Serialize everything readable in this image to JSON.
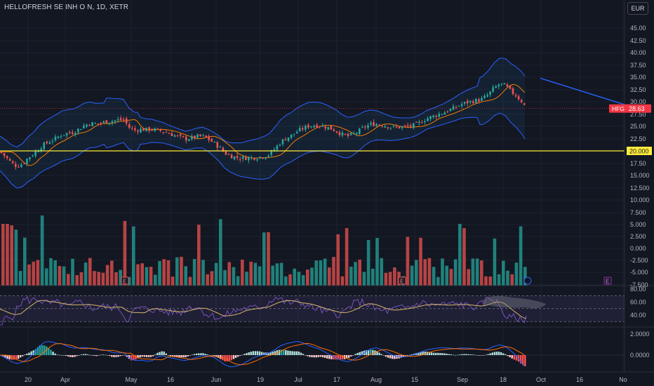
{
  "header": {
    "symbol_title": "HELLOFRESH SE INH O N, 1D, XETR",
    "currency": "EUR"
  },
  "price_axis": {
    "ticks": [
      "45.00",
      "42.50",
      "40.00",
      "37.50",
      "35.00",
      "32.50",
      "30.00",
      "27.50",
      "25.00",
      "22.50",
      "20.00",
      "17.50",
      "15.000",
      "12.500",
      "10.000",
      "7.500",
      "5.000",
      "2.500",
      "0.000",
      "-2.500",
      "-5.000",
      "-7.500"
    ]
  },
  "rsi_axis": {
    "ticks": [
      "80.00",
      "60.00",
      "40.00"
    ]
  },
  "macd_axis": {
    "ticks": [
      "2.0000",
      "0.0000"
    ]
  },
  "time_axis": {
    "ticks": [
      "20",
      "Apr",
      "May",
      "16",
      "Jun",
      "19",
      "Jul",
      "17",
      "Aug",
      "15",
      "Sep",
      "18",
      "Oct",
      "16",
      "No"
    ]
  },
  "price_labels": {
    "last": {
      "symbol": "HFG",
      "value": "28.63",
      "color": "#f23645"
    },
    "level": {
      "value": "20.000",
      "color": "#ffeb3b"
    }
  },
  "markers": {
    "earnings": "E"
  },
  "colors": {
    "up": "#26a69a",
    "down": "#ef5350",
    "bands": "#2962ff",
    "ma": "#f57c00",
    "rsi": "#7e57c2",
    "rsi_ma": "#d4b76a",
    "grid": "#1e222d"
  },
  "chart_data": {
    "type": "candlestick",
    "title": "HELLOFRESH SE INH O N, 1D, XETR",
    "price_range": [
      -7.5,
      47.5
    ],
    "horizontal_level": 20.0,
    "last_price": 28.63,
    "close_path": [
      [
        0,
        19.8
      ],
      [
        8,
        18.8
      ],
      [
        16,
        17.6
      ],
      [
        24,
        16.9
      ],
      [
        32,
        17.4
      ],
      [
        40,
        18.6
      ],
      [
        48,
        19.4
      ],
      [
        56,
        20.6
      ],
      [
        64,
        21.4
      ],
      [
        72,
        22.0
      ],
      [
        80,
        22.6
      ],
      [
        88,
        23.3
      ],
      [
        96,
        23.6
      ],
      [
        104,
        23.8
      ],
      [
        112,
        24.4
      ],
      [
        120,
        25.2
      ],
      [
        128,
        25.6
      ],
      [
        136,
        25.5
      ],
      [
        144,
        25.7
      ],
      [
        152,
        26.0
      ],
      [
        160,
        26.1
      ],
      [
        168,
        26.3
      ],
      [
        176,
        26.4
      ],
      [
        184,
        24.8
      ],
      [
        192,
        24.2
      ],
      [
        200,
        24.4
      ],
      [
        208,
        24.3
      ],
      [
        216,
        24.4
      ],
      [
        224,
        24.2
      ],
      [
        232,
        24.0
      ],
      [
        240,
        23.6
      ],
      [
        248,
        23.2
      ],
      [
        256,
        22.8
      ],
      [
        264,
        22.4
      ],
      [
        272,
        22.6
      ],
      [
        280,
        22.9
      ],
      [
        288,
        23.0
      ],
      [
        296,
        22.5
      ],
      [
        304,
        21.7
      ],
      [
        312,
        20.8
      ],
      [
        320,
        19.6
      ],
      [
        328,
        19.0
      ],
      [
        336,
        18.7
      ],
      [
        344,
        18.5
      ],
      [
        352,
        18.6
      ],
      [
        360,
        18.6
      ],
      [
        368,
        18.7
      ],
      [
        376,
        18.9
      ],
      [
        384,
        19.3
      ],
      [
        392,
        20.5
      ],
      [
        400,
        21.8
      ],
      [
        408,
        22.6
      ],
      [
        416,
        23.2
      ],
      [
        424,
        24.0
      ],
      [
        432,
        24.6
      ],
      [
        440,
        25.1
      ],
      [
        448,
        25.2
      ],
      [
        456,
        25.2
      ],
      [
        464,
        24.9
      ],
      [
        472,
        24.5
      ],
      [
        480,
        24.0
      ],
      [
        488,
        23.3
      ],
      [
        496,
        23.0
      ],
      [
        504,
        23.4
      ],
      [
        512,
        24.1
      ],
      [
        520,
        24.9
      ],
      [
        528,
        25.4
      ],
      [
        536,
        25.5
      ],
      [
        544,
        25.3
      ],
      [
        552,
        25.0
      ],
      [
        560,
        24.8
      ],
      [
        568,
        24.8
      ],
      [
        576,
        24.9
      ],
      [
        584,
        25.0
      ],
      [
        592,
        25.3
      ],
      [
        600,
        25.9
      ],
      [
        608,
        26.6
      ],
      [
        616,
        27.0
      ],
      [
        624,
        27.4
      ],
      [
        632,
        27.8
      ],
      [
        640,
        28.3
      ],
      [
        648,
        28.8
      ],
      [
        656,
        29.4
      ],
      [
        664,
        29.8
      ],
      [
        672,
        30.1
      ],
      [
        680,
        30.3
      ],
      [
        688,
        30.6
      ],
      [
        696,
        31.5
      ],
      [
        704,
        32.8
      ],
      [
        712,
        33.6
      ],
      [
        720,
        33.3
      ],
      [
        728,
        32.1
      ],
      [
        736,
        31.2
      ],
      [
        744,
        30.0
      ],
      [
        750,
        28.63
      ]
    ],
    "volume_range": [
      0,
      1
    ],
    "rsi": {
      "range": [
        20,
        80
      ],
      "bands": [
        70,
        30
      ],
      "midline": 50
    },
    "macd": {
      "range": [
        -0.9,
        2.7
      ],
      "zero": 0
    },
    "projection_line": {
      "from": [
        770,
        34.8
      ],
      "to": [
        895,
        29.2
      ]
    }
  }
}
